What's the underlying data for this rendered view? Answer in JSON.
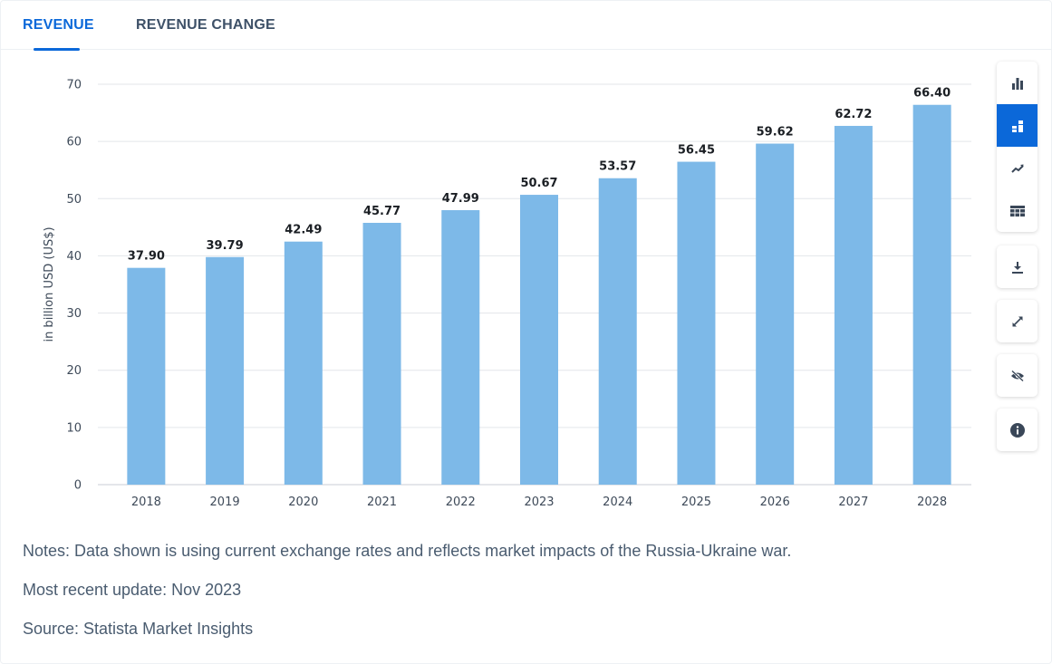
{
  "tabs": [
    {
      "label": "REVENUE",
      "active": true
    },
    {
      "label": "REVENUE CHANGE",
      "active": false
    }
  ],
  "colors": {
    "accent": "#0b68d9",
    "bar": "#7db9e8",
    "grid": "#e3e6ea",
    "tab_inactive": "#3e5168",
    "icon": "#3a4758"
  },
  "chart_data": {
    "type": "bar",
    "title": "",
    "xlabel": "",
    "ylabel": "in billion USD (US$)",
    "categories": [
      "2018",
      "2019",
      "2020",
      "2021",
      "2022",
      "2023",
      "2024",
      "2025",
      "2026",
      "2027",
      "2028"
    ],
    "values": [
      37.9,
      39.79,
      42.49,
      45.77,
      47.99,
      50.67,
      53.57,
      56.45,
      59.62,
      62.72,
      66.4
    ],
    "value_labels": [
      "37.90",
      "39.79",
      "42.49",
      "45.77",
      "47.99",
      "50.67",
      "53.57",
      "56.45",
      "59.62",
      "62.72",
      "66.40"
    ],
    "ylim": [
      0,
      70
    ],
    "yticks": [
      0,
      10,
      20,
      30,
      40,
      50,
      60,
      70
    ],
    "grid": true,
    "legend": "none"
  },
  "toolbar": {
    "chart_buttons": [
      {
        "icon": "bar-chart-icon",
        "active": false
      },
      {
        "icon": "stacked-bar-chart-icon",
        "active": true
      },
      {
        "icon": "trend-line-icon",
        "active": false
      },
      {
        "icon": "table-icon",
        "active": false
      }
    ],
    "actions": [
      {
        "icon": "download-icon"
      },
      {
        "icon": "fullscreen-icon"
      },
      {
        "icon": "hide-icon"
      },
      {
        "icon": "info-icon"
      }
    ]
  },
  "notes": {
    "notes_line": "Notes: Data shown is using current exchange rates and reflects market impacts of the Russia-Ukraine war.",
    "update_line": "Most recent update: Nov 2023",
    "source_line": "Source: Statista Market Insights"
  }
}
